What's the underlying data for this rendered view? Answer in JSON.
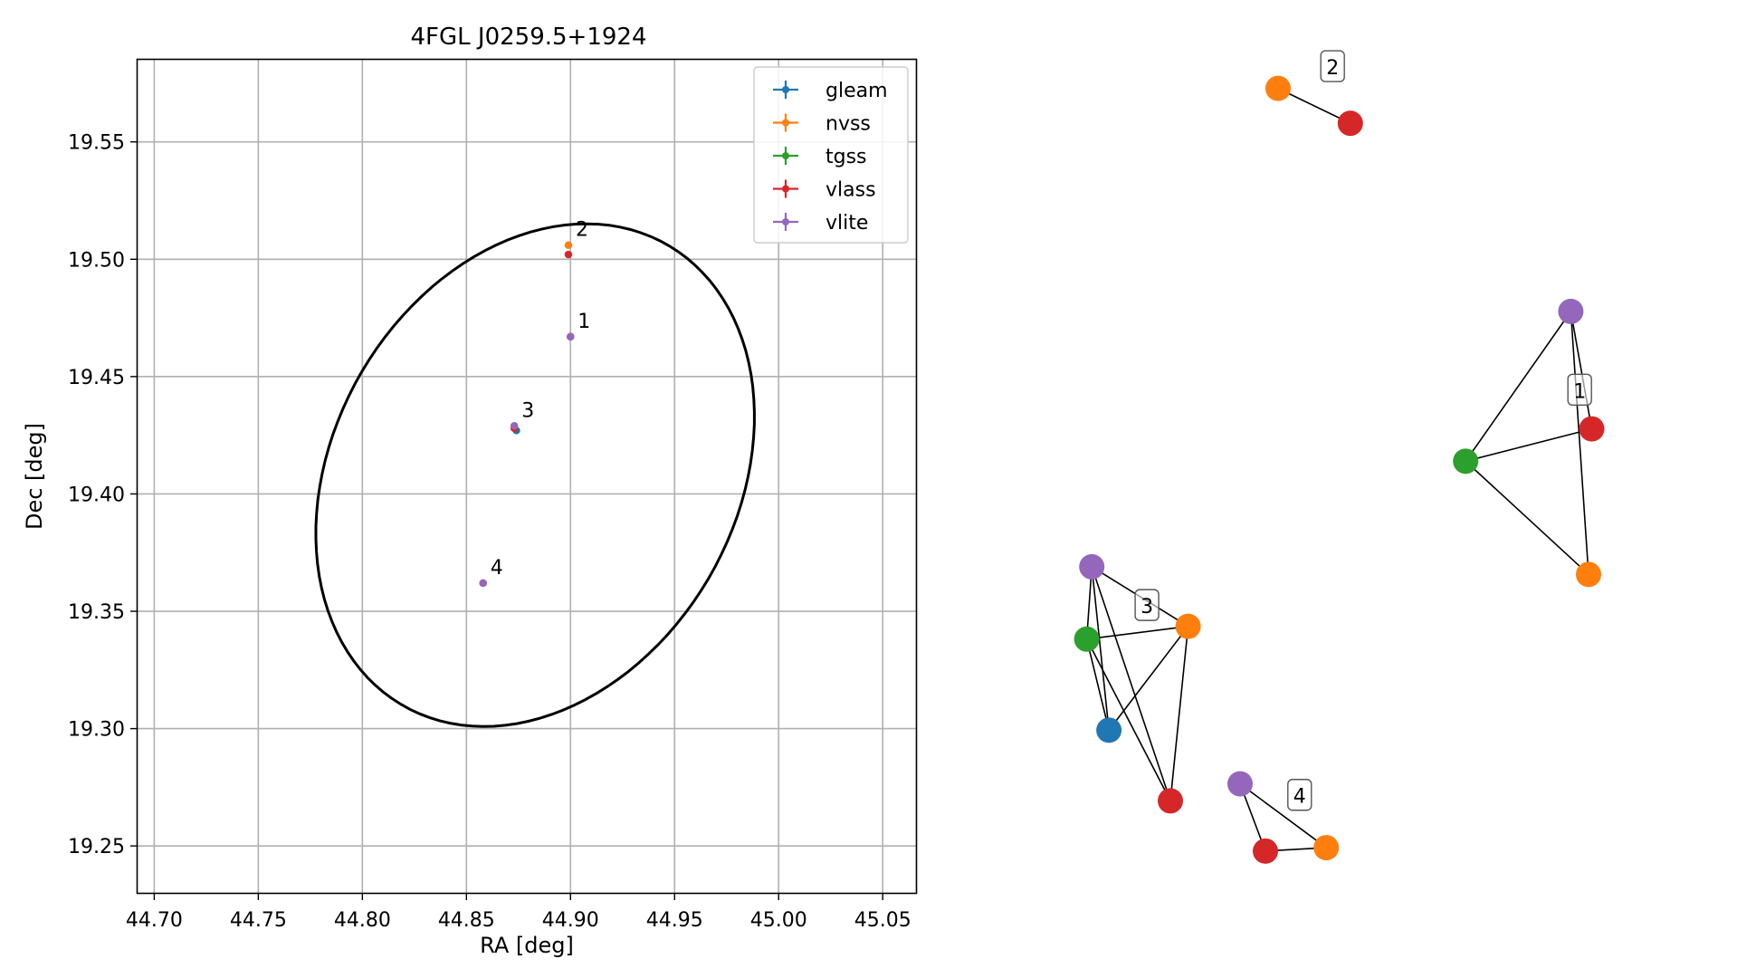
{
  "chart_data": [
    {
      "type": "scatter",
      "title": "4FGL J0259.5+1924",
      "xlabel": "RA [deg]",
      "ylabel": "Dec [deg]",
      "xlim": [
        44.692,
        45.066
      ],
      "ylim": [
        19.23,
        19.585
      ],
      "xticks": [
        "44.70",
        "44.75",
        "44.80",
        "44.85",
        "44.90",
        "44.95",
        "45.00",
        "45.05"
      ],
      "yticks": [
        "19.25",
        "19.30",
        "19.35",
        "19.40",
        "19.45",
        "19.50",
        "19.55"
      ],
      "grid": true,
      "legend_position": "top-right",
      "series": [
        {
          "name": "gleam",
          "color": "#1f77b4",
          "points": [
            [
              44.874,
              19.427
            ]
          ]
        },
        {
          "name": "nvss",
          "color": "#ff7f0e",
          "points": [
            [
              44.899,
              19.506
            ],
            [
              44.9,
              19.467
            ],
            [
              44.873,
              19.429
            ],
            [
              44.858,
              19.362
            ]
          ]
        },
        {
          "name": "tgss",
          "color": "#2ca02c",
          "points": [
            [
              44.9,
              19.467
            ],
            [
              44.873,
              19.428
            ]
          ]
        },
        {
          "name": "vlass",
          "color": "#d62728",
          "points": [
            [
              44.899,
              19.502
            ],
            [
              44.9,
              19.467
            ],
            [
              44.873,
              19.428
            ],
            [
              44.858,
              19.362
            ]
          ]
        },
        {
          "name": "vlite",
          "color": "#9467bd",
          "points": [
            [
              44.9,
              19.467
            ],
            [
              44.873,
              19.429
            ],
            [
              44.858,
              19.362
            ]
          ]
        }
      ],
      "cluster_labels": [
        {
          "label": "1",
          "x": 44.9,
          "y": 19.467
        },
        {
          "label": "2",
          "x": 44.899,
          "y": 19.506
        },
        {
          "label": "3",
          "x": 44.873,
          "y": 19.429
        },
        {
          "label": "4",
          "x": 44.858,
          "y": 19.362
        }
      ],
      "ellipse": {
        "center": [
          44.883,
          19.408
        ],
        "semi_axis_a_deg": 0.118,
        "semi_axis_b_deg": 0.093,
        "angle_deg": 47
      }
    },
    {
      "type": "network",
      "node_colors": {
        "gleam": "#1f77b4",
        "nvss": "#ff7f0e",
        "tgss": "#2ca02c",
        "vlass": "#d62728",
        "vlite": "#9467bd"
      },
      "clusters": [
        {
          "label": "1",
          "nodes": [
            {
              "id": "vlite",
              "x": 0.822,
              "y": 0.698
            },
            {
              "id": "vlass",
              "x": 0.855,
              "y": 0.56
            },
            {
              "id": "tgss",
              "x": 0.656,
              "y": 0.522
            },
            {
              "id": "nvss",
              "x": 0.85,
              "y": 0.389
            }
          ],
          "edges": [
            [
              "vlite",
              "tgss"
            ],
            [
              "vlite",
              "vlass"
            ],
            [
              "vlite",
              "nvss"
            ],
            [
              "tgss",
              "vlass"
            ],
            [
              "tgss",
              "nvss"
            ]
          ],
          "label_pos": {
            "x": 0.836,
            "y": 0.605
          }
        },
        {
          "label": "2",
          "nodes": [
            {
              "id": "nvss",
              "x": 0.36,
              "y": 0.96
            },
            {
              "id": "vlass",
              "x": 0.474,
              "y": 0.919
            }
          ],
          "edges": [
            [
              "nvss",
              "vlass"
            ]
          ],
          "label_pos": {
            "x": 0.446,
            "y": 0.985
          }
        },
        {
          "label": "3",
          "nodes": [
            {
              "id": "vlite",
              "x": 0.066,
              "y": 0.398
            },
            {
              "id": "tgss",
              "x": 0.058,
              "y": 0.313
            },
            {
              "id": "nvss",
              "x": 0.218,
              "y": 0.328
            },
            {
              "id": "gleam",
              "x": 0.093,
              "y": 0.206
            },
            {
              "id": "vlass",
              "x": 0.19,
              "y": 0.123
            }
          ],
          "edges": [
            [
              "vlite",
              "tgss"
            ],
            [
              "vlite",
              "nvss"
            ],
            [
              "vlite",
              "gleam"
            ],
            [
              "vlite",
              "vlass"
            ],
            [
              "tgss",
              "nvss"
            ],
            [
              "tgss",
              "gleam"
            ],
            [
              "tgss",
              "vlass"
            ],
            [
              "gleam",
              "nvss"
            ],
            [
              "nvss",
              "vlass"
            ]
          ],
          "label_pos": {
            "x": 0.153,
            "y": 0.352
          }
        },
        {
          "label": "4",
          "nodes": [
            {
              "id": "vlite",
              "x": 0.3,
              "y": 0.143
            },
            {
              "id": "vlass",
              "x": 0.34,
              "y": 0.064
            },
            {
              "id": "nvss",
              "x": 0.436,
              "y": 0.068
            }
          ],
          "edges": [
            [
              "vlite",
              "vlass"
            ],
            [
              "vlite",
              "nvss"
            ],
            [
              "vlass",
              "nvss"
            ]
          ],
          "label_pos": {
            "x": 0.394,
            "y": 0.129
          }
        }
      ]
    }
  ]
}
